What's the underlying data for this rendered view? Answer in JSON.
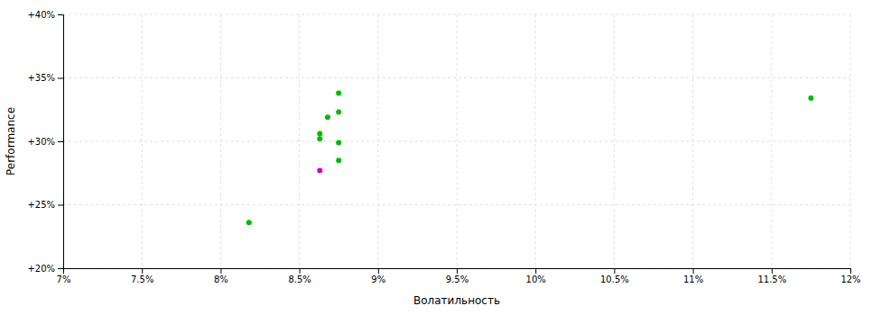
{
  "chart_data": {
    "type": "scatter",
    "x_label": "Волатильность",
    "y_label": "Performance",
    "series": [
      {
        "color": "#00bb00",
        "x": [
          0.0875,
          0.0875,
          0.0868,
          0.0863,
          0.0863,
          0.0875,
          0.0875,
          0.0818,
          0.1175
        ],
        "values": [
          0.338,
          0.323,
          0.319,
          0.306,
          0.302,
          0.299,
          0.285,
          0.236,
          0.334
        ]
      },
      {
        "color": "#cc00cc",
        "x": [
          0.0863
        ],
        "values": [
          0.277
        ]
      }
    ],
    "xlim": [
      0.07,
      0.12
    ],
    "ylim": [
      0.2,
      0.4
    ],
    "xticks": [
      {
        "value": 0.07,
        "label": "7%"
      },
      {
        "value": 0.075,
        "label": "7.5%"
      },
      {
        "value": 0.08,
        "label": "8%"
      },
      {
        "value": 0.085,
        "label": "8.5%"
      },
      {
        "value": 0.09,
        "label": "9%"
      },
      {
        "value": 0.095,
        "label": "9.5%"
      },
      {
        "value": 0.1,
        "label": "10%"
      },
      {
        "value": 0.105,
        "label": "10.5%"
      },
      {
        "value": 0.11,
        "label": "11%"
      },
      {
        "value": 0.115,
        "label": "11.5%"
      },
      {
        "value": 0.12,
        "label": "12%"
      }
    ],
    "yticks": [
      {
        "value": 0.2,
        "label": "+20%"
      },
      {
        "value": 0.25,
        "label": "+25%"
      },
      {
        "value": 0.3,
        "label": "+30%"
      },
      {
        "value": 0.35,
        "label": "+35%"
      },
      {
        "value": 0.4,
        "label": "+40%"
      }
    ],
    "grid": true
  }
}
